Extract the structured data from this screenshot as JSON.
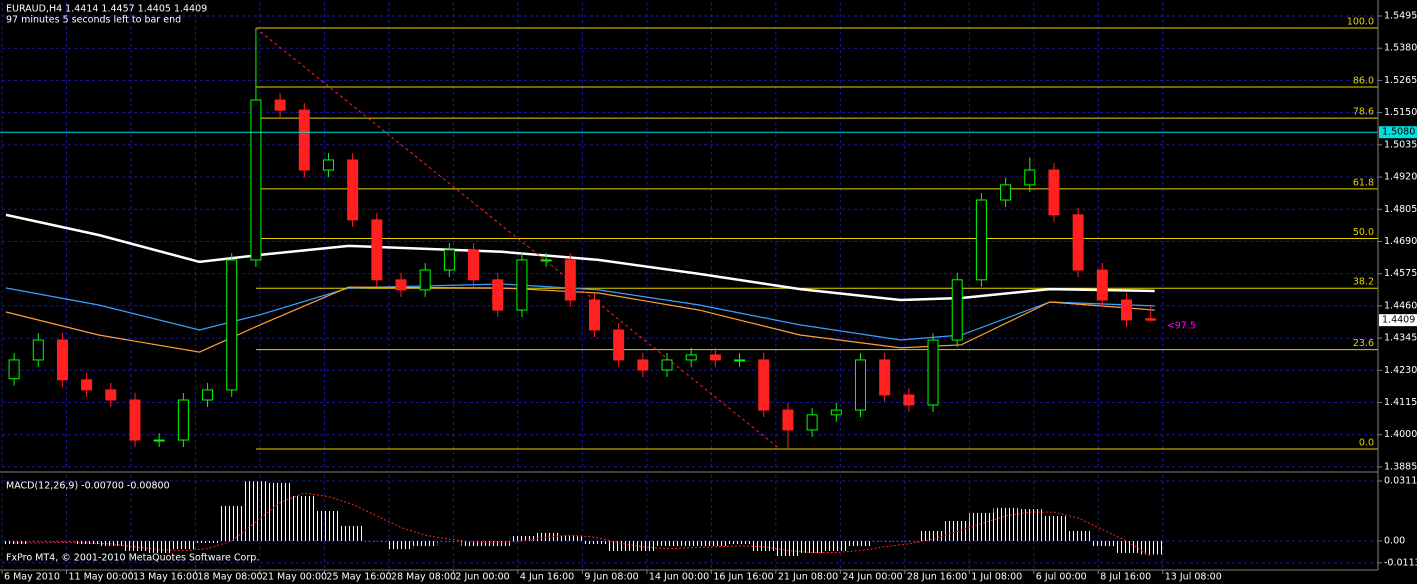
{
  "chart_data": [
    {
      "type": "candlestick",
      "title": "EURAUD,H4  1.4414 1.4457 1.4405 1.4409",
      "subtitle": "97 minutes 5 seconds left to bar end",
      "x": [
        3,
        9,
        15,
        21,
        27,
        33,
        39,
        45,
        51,
        57,
        63,
        69,
        75,
        81,
        87,
        93,
        99,
        105,
        111,
        117,
        123,
        129,
        135,
        141,
        147,
        153,
        159,
        165,
        171,
        177,
        183,
        189,
        195,
        201,
        207,
        213,
        219,
        225,
        231,
        237,
        243,
        249,
        255,
        261,
        267,
        273,
        279,
        285
      ],
      "open": [
        1.42,
        1.4267,
        1.4338,
        1.4196,
        1.416,
        1.4124,
        1.3981,
        1.3981,
        1.4124,
        1.416,
        1.4624,
        1.5195,
        1.5159,
        1.4945,
        1.4981,
        1.4767,
        1.4553,
        1.4517,
        1.4588,
        1.466,
        1.4553,
        1.4445,
        1.4624,
        1.4624,
        1.4481,
        1.4374,
        1.4267,
        1.4231,
        1.4267,
        1.4285,
        1.4267,
        1.4267,
        1.4088,
        1.4017,
        1.4071,
        1.4088,
        1.4267,
        1.4142,
        1.4106,
        1.4338,
        1.4553,
        1.4838,
        1.4892,
        1.4945,
        1.4785,
        1.4588,
        1.4481,
        1.4414
      ],
      "high": [
        1.4292,
        1.4363,
        1.4363,
        1.4221,
        1.4185,
        1.4149,
        1.4006,
        1.4149,
        1.4185,
        1.4649,
        1.5452,
        1.522,
        1.5184,
        1.5006,
        1.5006,
        1.4792,
        1.4578,
        1.4613,
        1.4685,
        1.4685,
        1.4578,
        1.4649,
        1.4649,
        1.4649,
        1.4506,
        1.4399,
        1.4292,
        1.4292,
        1.431,
        1.431,
        1.4292,
        1.4292,
        1.4113,
        1.4096,
        1.4113,
        1.4292,
        1.4292,
        1.4167,
        1.4363,
        1.4578,
        1.4863,
        1.4917,
        1.499,
        1.497,
        1.481,
        1.4613,
        1.4506,
        1.4457
      ],
      "low": [
        1.4175,
        1.4242,
        1.4171,
        1.4135,
        1.4099,
        1.3956,
        1.3956,
        1.3956,
        1.4099,
        1.4135,
        1.4599,
        1.5134,
        1.492,
        1.492,
        1.4742,
        1.4528,
        1.4492,
        1.4492,
        1.4563,
        1.4528,
        1.442,
        1.442,
        1.4599,
        1.4456,
        1.4349,
        1.4242,
        1.4206,
        1.4206,
        1.4242,
        1.4242,
        1.4242,
        1.4063,
        1.3949,
        1.3992,
        1.4046,
        1.4063,
        1.4117,
        1.4081,
        1.4081,
        1.4313,
        1.4528,
        1.4813,
        1.4867,
        1.476,
        1.4563,
        1.4456,
        1.4385,
        1.4405
      ],
      "close": [
        1.4267,
        1.4338,
        1.4196,
        1.416,
        1.4124,
        1.3981,
        1.3981,
        1.4124,
        1.416,
        1.4624,
        1.5195,
        1.5159,
        1.4945,
        1.4981,
        1.4767,
        1.4553,
        1.4517,
        1.4588,
        1.466,
        1.4553,
        1.4445,
        1.4624,
        1.4624,
        1.4481,
        1.4374,
        1.4267,
        1.4231,
        1.4267,
        1.4285,
        1.4267,
        1.4267,
        1.4088,
        1.4017,
        1.4071,
        1.4088,
        1.4267,
        1.4142,
        1.4106,
        1.4338,
        1.4553,
        1.4838,
        1.4892,
        1.4945,
        1.4785,
        1.4588,
        1.4481,
        1.441,
        1.4409
      ],
      "up_color": "#00ff00",
      "down_color": "#ff2020",
      "lines": [
        {
          "color": "#ffffff",
          "x": [
            1,
            24,
            49,
            64,
            86,
            124,
            148,
            173,
            198,
            223,
            238,
            260,
            286
          ],
          "values": [
            1.4785,
            1.4713,
            1.4617,
            1.4642,
            1.4674,
            1.4653,
            1.4624,
            1.4574,
            1.452,
            1.4481,
            1.4488,
            1.452,
            1.4513
          ]
        },
        {
          "color": "#3aa0ff",
          "x": [
            1,
            24,
            49,
            64,
            86,
            124,
            148,
            173,
            198,
            223,
            238,
            260,
            286
          ],
          "values": [
            1.4524,
            1.4463,
            1.4374,
            1.4428,
            1.4524,
            1.4538,
            1.4517,
            1.4463,
            1.4392,
            1.4338,
            1.4356,
            1.4474,
            1.446
          ]
        },
        {
          "color": "#ffa030",
          "x": [
            1,
            24,
            49,
            64,
            86,
            124,
            148,
            173,
            198,
            223,
            238,
            260,
            286
          ],
          "values": [
            1.4438,
            1.4356,
            1.4295,
            1.4392,
            1.4527,
            1.4524,
            1.4506,
            1.4445,
            1.4356,
            1.431,
            1.4321,
            1.4474,
            1.4445
          ]
        }
      ],
      "trendline": {
        "color": "#ff2020",
        "x": [
          63,
          193
        ],
        "values": [
          1.5452,
          1.3949
        ]
      },
      "fibonacci": {
        "x_start": 63,
        "high": 1.5452,
        "low": 1.3949,
        "color": "#e6d200",
        "levels": [
          {
            "value": 100,
            "label": "100.0"
          },
          {
            "value": 86,
            "label": "86.0"
          },
          {
            "value": 78.6,
            "label": "78.6"
          },
          {
            "value": 61.8,
            "label": "61.8"
          },
          {
            "value": 50,
            "label": "50.0"
          },
          {
            "value": 38.2,
            "label": "38.2"
          },
          {
            "value": 23.6,
            "label": "23.6"
          },
          {
            "value": 0,
            "label": "0.0"
          }
        ]
      },
      "price_lines": [
        {
          "value": 1.508,
          "label": "1.5080",
          "color": "#00e0e0",
          "line": true
        },
        {
          "value": 1.4409,
          "label": "1.4409",
          "color": "#ffffff",
          "line": false
        }
      ],
      "annotation": {
        "x": 289,
        "value": 1.4388,
        "text": "<97.5",
        "color": "#ff00ff"
      },
      "xlim": [
        0,
        341.4
      ],
      "xticks": [
        {
          "value": 0,
          "label": "6 May 2010"
        },
        {
          "value": 16,
          "label": "11 May 00:00"
        },
        {
          "value": 32,
          "label": "13 May 16:00"
        },
        {
          "value": 48,
          "label": "18 May 08:00"
        },
        {
          "value": 64,
          "label": "21 May 00:00"
        },
        {
          "value": 80,
          "label": "25 May 16:00"
        },
        {
          "value": 96,
          "label": "28 May 08:00"
        },
        {
          "value": 112,
          "label": "2 Jun 00:00"
        },
        {
          "value": 128,
          "label": "4 Jun 16:00"
        },
        {
          "value": 144,
          "label": "9 Jun 08:00"
        },
        {
          "value": 160,
          "label": "14 Jun 00:00"
        },
        {
          "value": 176,
          "label": "16 Jun 16:00"
        },
        {
          "value": 192,
          "label": "21 Jun 08:00"
        },
        {
          "value": 208,
          "label": "24 Jun 00:00"
        },
        {
          "value": 224,
          "label": "28 Jun 16:00"
        },
        {
          "value": 240,
          "label": "1 Jul 08:00"
        },
        {
          "value": 256,
          "label": "6 Jul 00:00"
        },
        {
          "value": 272,
          "label": "8 Jul 16:00"
        },
        {
          "value": 288,
          "label": "13 Jul 08:00"
        }
      ],
      "ylim": [
        1.3874,
        1.5545
      ],
      "yticks": [
        1.5495,
        {
          "value": 1.538,
          "label": "1.5380"
        },
        1.5265,
        {
          "value": 1.515,
          "label": "1.5150"
        },
        1.5035,
        {
          "value": 1.492,
          "label": "1.4920"
        },
        1.4805,
        {
          "value": 1.469,
          "label": "1.4690"
        },
        1.4575,
        {
          "value": 1.446,
          "label": "1.4460"
        },
        1.4345,
        {
          "value": 1.423,
          "label": "1.4230"
        },
        1.4115,
        {
          "value": 1.4,
          "label": "1.4000"
        },
        1.3885
      ],
      "grid": true,
      "grid_color": "#1c1c90"
    },
    {
      "type": "macd",
      "title": "MACD(12,26,9) -0.00700 -0.00800",
      "values": [
        -0.0016,
        0,
        0,
        -0.0016,
        -0.0026,
        -0.0052,
        -0.0062,
        -0.0042,
        -0.001,
        0.0182,
        0.031,
        0.0302,
        0.0234,
        0.0156,
        0.0078,
        0,
        -0.0042,
        -0.0026,
        0,
        -0.0026,
        -0.0026,
        0.0026,
        0.0042,
        0.0026,
        -0.0016,
        -0.0052,
        -0.0052,
        -0.0026,
        -0.0026,
        -0.0026,
        -0.0016,
        -0.0052,
        -0.0078,
        -0.0062,
        -0.0052,
        -0.0026,
        0,
        0,
        0.0052,
        0.0104,
        0.0146,
        0.0172,
        0.0166,
        0.013,
        0.0052,
        -0.0026,
        -0.0062,
        -0.007
      ],
      "signal": [
        -0.001,
        -0.001,
        -0.0008,
        -0.001,
        -0.0015,
        -0.003,
        -0.0045,
        -0.005,
        -0.004,
        0,
        0.01,
        0.02,
        0.025,
        0.023,
        0.019,
        0.013,
        0.007,
        0.003,
        0.001,
        -0.0005,
        -0.001,
        0,
        0.002,
        0.003,
        0.002,
        -0.001,
        -0.003,
        -0.004,
        -0.0035,
        -0.003,
        -0.0025,
        -0.003,
        -0.005,
        -0.006,
        -0.006,
        -0.005,
        -0.003,
        -0.0015,
        0.001,
        0.005,
        0.009,
        0.013,
        0.015,
        0.015,
        0.012,
        0.006,
        0,
        -0.008
      ],
      "color": "#ffffff",
      "signal_color": "#ff2020",
      "ylim": [
        -0.01403,
        0.03429
      ],
      "yticks": [
        0.03117,
        {
          "value": 0,
          "label": "0.00"
        },
        -0.01134
      ],
      "grid": true
    }
  ],
  "footer": "FxPro MT4, © 2001-2010 MetaQuotes Software Corp."
}
